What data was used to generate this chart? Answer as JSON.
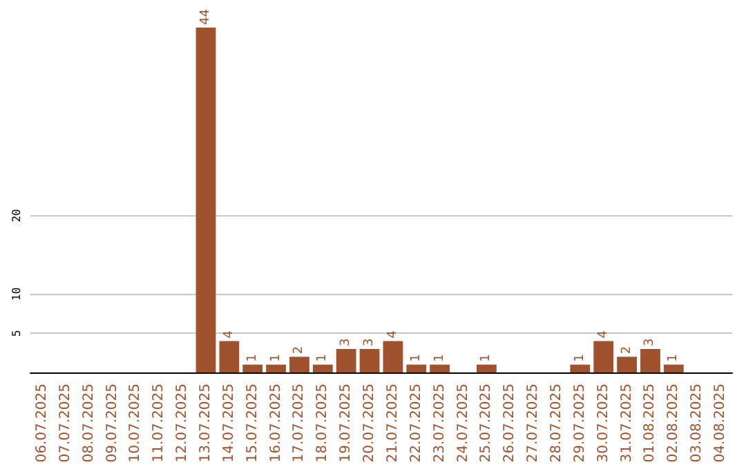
{
  "chart_data": {
    "type": "bar",
    "categories": [
      "06.07.2025",
      "07.07.2025",
      "08.07.2025",
      "09.07.2025",
      "10.07.2025",
      "11.07.2025",
      "12.07.2025",
      "13.07.2025",
      "14.07.2025",
      "15.07.2025",
      "16.07.2025",
      "17.07.2025",
      "18.07.2025",
      "19.07.2025",
      "20.07.2025",
      "21.07.2025",
      "22.07.2025",
      "23.07.2025",
      "24.07.2025",
      "25.07.2025",
      "26.07.2025",
      "27.07.2025",
      "28.07.2025",
      "29.07.2025",
      "30.07.2025",
      "31.07.2025",
      "01.08.2025",
      "02.08.2025",
      "03.08.2025",
      "04.08.2025"
    ],
    "values": [
      null,
      null,
      null,
      null,
      null,
      null,
      null,
      44,
      4,
      1,
      1,
      2,
      1,
      3,
      3,
      4,
      1,
      1,
      null,
      1,
      null,
      null,
      null,
      1,
      4,
      2,
      3,
      1,
      null,
      null
    ],
    "color": "#a0522d",
    "ylim": [
      0,
      44
    ],
    "yticks": [
      5,
      10,
      20
    ],
    "grid": "y",
    "data_labels": true
  }
}
